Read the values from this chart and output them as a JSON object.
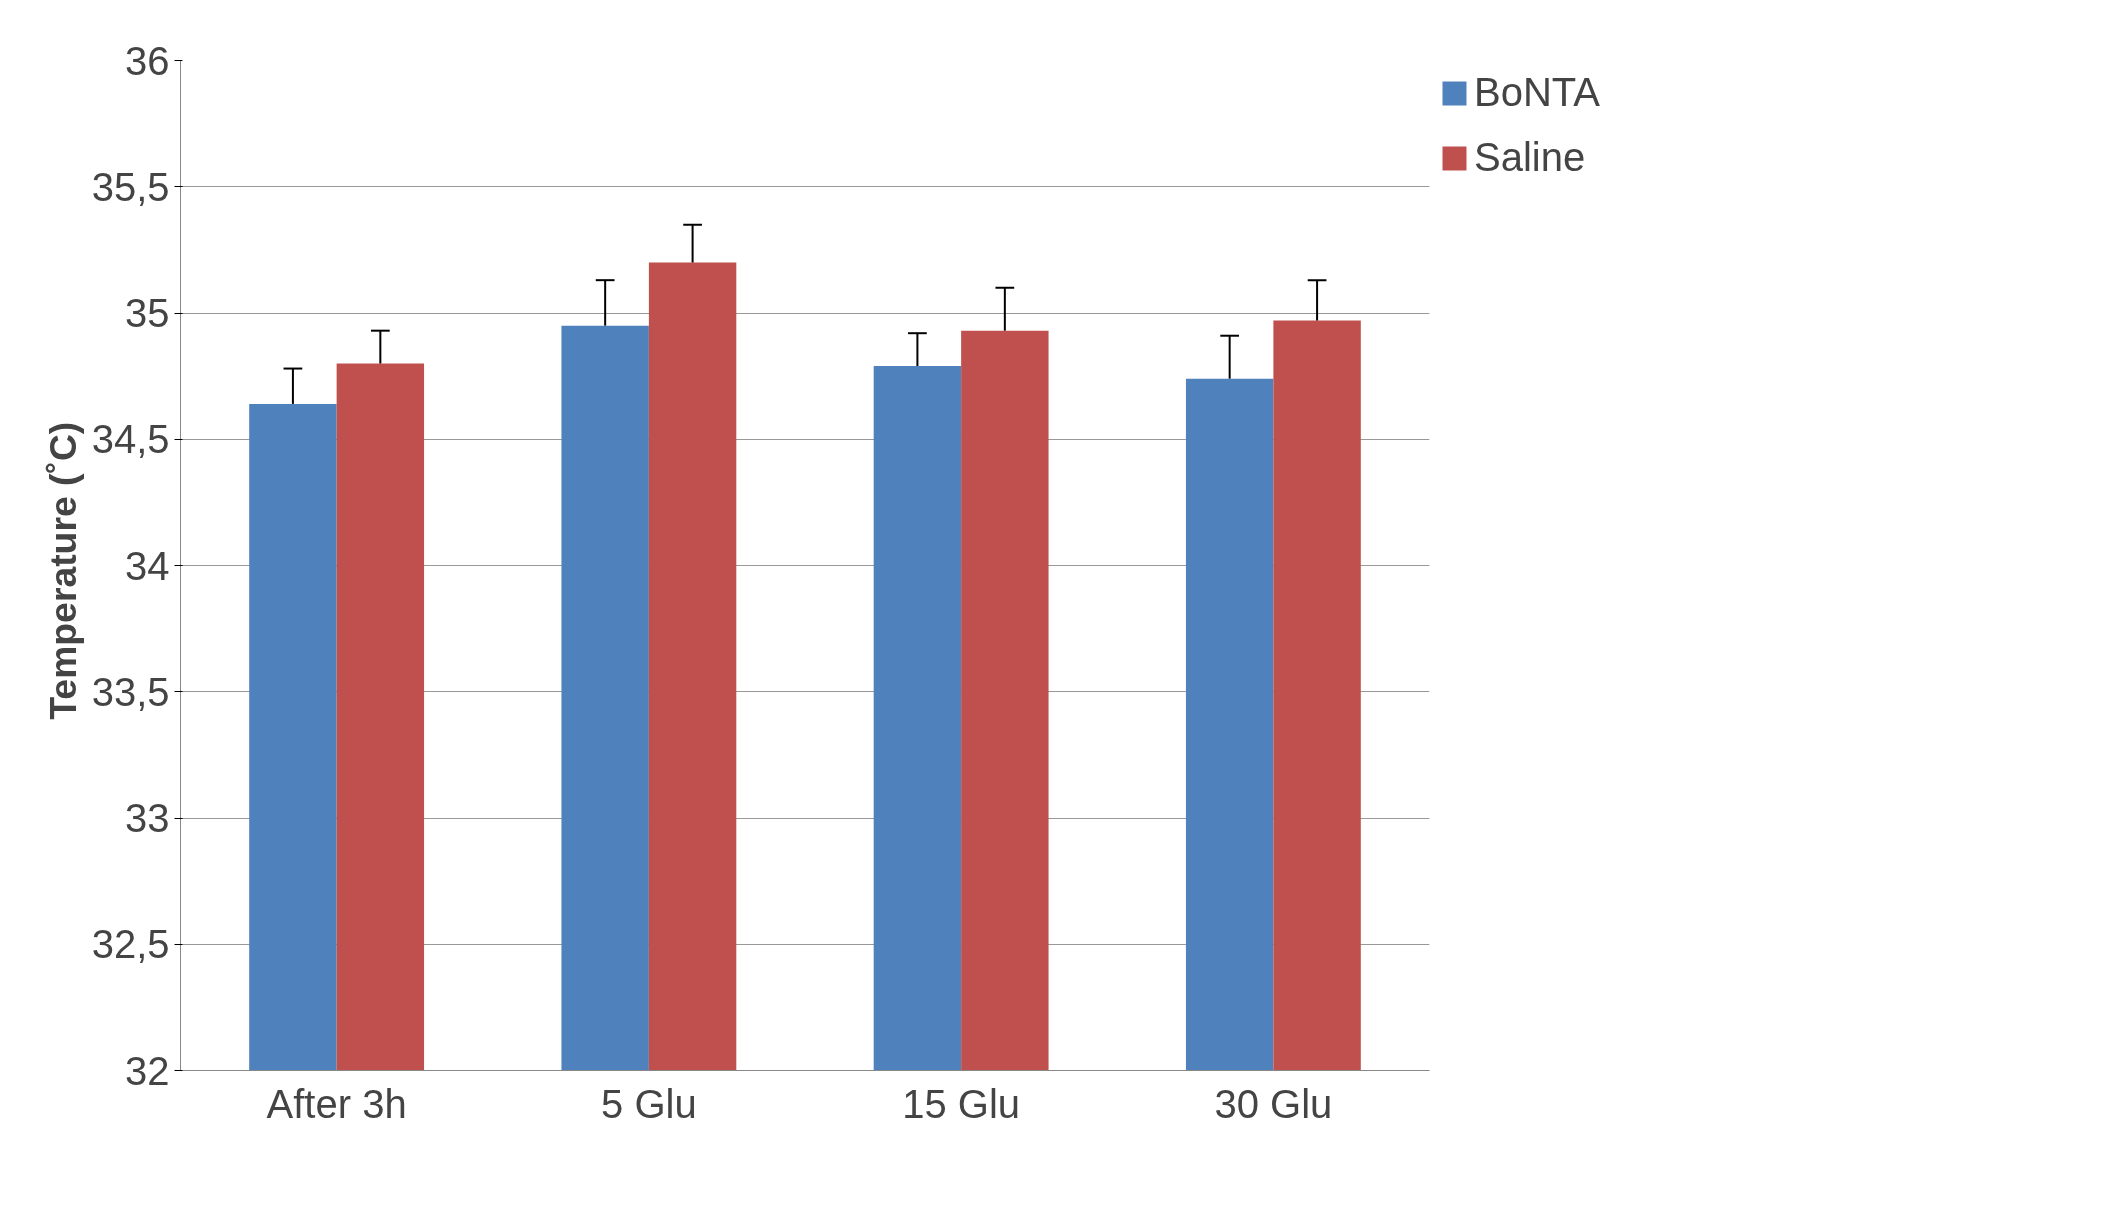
{
  "chart_data": {
    "type": "bar",
    "ylabel": "Temperature  (˚C)",
    "categories": [
      "After 3h",
      "5 Glu",
      "15 Glu",
      "30 Glu"
    ],
    "series": [
      {
        "name": "BoNTA",
        "color": "#4f81bd",
        "values": [
          34.64,
          34.95,
          34.79,
          34.74
        ],
        "errors": [
          [
            34.64,
            34.78
          ],
          [
            34.95,
            35.13
          ],
          [
            34.79,
            34.92
          ],
          [
            34.74,
            34.91
          ]
        ]
      },
      {
        "name": "Saline",
        "color": "#c0504d",
        "values": [
          34.8,
          35.2,
          34.93,
          34.97
        ],
        "errors": [
          [
            34.8,
            34.93
          ],
          [
            35.2,
            35.35
          ],
          [
            34.93,
            35.1
          ],
          [
            34.97,
            35.13
          ]
        ]
      }
    ],
    "ylim": [
      32,
      36
    ],
    "yticks": [
      {
        "value": 32,
        "label": "32"
      },
      {
        "value": 32.5,
        "label": "32,5"
      },
      {
        "value": 33,
        "label": "33"
      },
      {
        "value": 33.5,
        "label": "33,5"
      },
      {
        "value": 34,
        "label": "34"
      },
      {
        "value": 34.5,
        "label": "34,5"
      },
      {
        "value": 35,
        "label": "35"
      },
      {
        "value": 35.5,
        "label": "35,5"
      },
      {
        "value": 36,
        "label": "36"
      }
    ],
    "grid": "y",
    "legend": "top right"
  }
}
